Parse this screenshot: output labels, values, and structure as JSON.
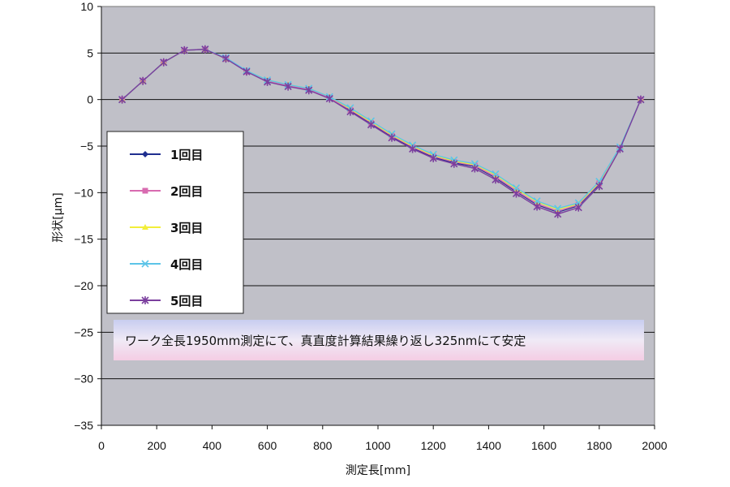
{
  "chart_data": {
    "type": "line",
    "title": "",
    "xlabel": "測定長[mm]",
    "ylabel": "形状[μm]",
    "xlim": [
      0,
      2000
    ],
    "ylim": [
      -35,
      10
    ],
    "x_ticks": [
      0,
      200,
      400,
      600,
      800,
      1000,
      1200,
      1400,
      1600,
      1800,
      2000
    ],
    "y_ticks": [
      10,
      5,
      0,
      -5,
      -10,
      -15,
      -20,
      -25,
      -30,
      -35
    ],
    "grid": "horizontal",
    "legend_position": "left-middle",
    "annotation": "ワーク全長1950mm測定にて、真直度計算結果繰り返し325nmにて安定",
    "x": [
      75,
      150,
      225,
      300,
      375,
      450,
      525,
      600,
      675,
      750,
      825,
      900,
      975,
      1050,
      1125,
      1200,
      1275,
      1350,
      1425,
      1500,
      1575,
      1650,
      1725,
      1800,
      1875,
      1950
    ],
    "series": [
      {
        "name": "1回目",
        "color": "#1f2f8f",
        "marker": "diamond",
        "values": [
          0,
          2.0,
          4.0,
          5.3,
          5.4,
          4.4,
          3.0,
          2.0,
          1.5,
          1.1,
          0.2,
          -1.2,
          -2.6,
          -4.0,
          -5.2,
          -6.2,
          -6.8,
          -7.2,
          -8.4,
          -9.9,
          -11.3,
          -12.1,
          -11.4,
          -9.1,
          -5.2,
          0
        ]
      },
      {
        "name": "2回目",
        "color": "#d86bb0",
        "marker": "square",
        "values": [
          0,
          2.0,
          4.0,
          5.3,
          5.4,
          4.4,
          3.0,
          2.0,
          1.5,
          1.1,
          0.2,
          -1.1,
          -2.5,
          -3.9,
          -5.1,
          -6.1,
          -6.7,
          -7.1,
          -8.3,
          -9.8,
          -11.2,
          -12.0,
          -11.3,
          -9.0,
          -5.2,
          0
        ]
      },
      {
        "name": "3回目",
        "color": "#f2ee3a",
        "marker": "triangle",
        "values": [
          0,
          2.0,
          4.0,
          5.3,
          5.4,
          4.4,
          3.1,
          2.1,
          1.6,
          1.2,
          0.3,
          -1.0,
          -2.4,
          -3.8,
          -5.0,
          -6.0,
          -6.6,
          -7.0,
          -8.1,
          -9.6,
          -11.0,
          -11.8,
          -11.2,
          -8.9,
          -5.1,
          0
        ]
      },
      {
        "name": "4回目",
        "color": "#5cc4e8",
        "marker": "x",
        "values": [
          0,
          2.0,
          4.0,
          5.3,
          5.4,
          4.5,
          3.1,
          2.1,
          1.6,
          1.2,
          0.3,
          -0.9,
          -2.3,
          -3.7,
          -4.9,
          -5.9,
          -6.5,
          -6.9,
          -8.0,
          -9.5,
          -10.9,
          -11.7,
          -11.1,
          -8.8,
          -5.1,
          0
        ]
      },
      {
        "name": "5回目",
        "color": "#7b3f9e",
        "marker": "star",
        "values": [
          0,
          2.0,
          4.0,
          5.3,
          5.4,
          4.4,
          3.0,
          1.9,
          1.4,
          1.0,
          0.1,
          -1.3,
          -2.7,
          -4.1,
          -5.3,
          -6.3,
          -6.9,
          -7.4,
          -8.6,
          -10.1,
          -11.5,
          -12.3,
          -11.6,
          -9.3,
          -5.3,
          0
        ]
      }
    ]
  }
}
